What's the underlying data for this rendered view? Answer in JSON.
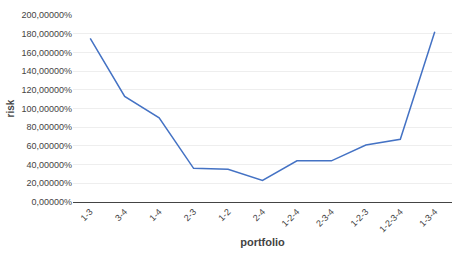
{
  "chart_data": {
    "type": "line",
    "xlabel": "portfolio",
    "ylabel": "risk",
    "categories": [
      "1-3",
      "3-4",
      "1-4",
      "2-3",
      "1-2",
      "2-4",
      "1-2-4",
      "2-3-4",
      "1-2-3",
      "1-2-3-4",
      "1-3-4"
    ],
    "values": [
      1.75,
      1.13,
      0.9,
      0.36,
      0.35,
      0.23,
      0.44,
      0.44,
      0.61,
      0.67,
      1.82
    ],
    "color": "#4472c4",
    "ylim": [
      0.0,
      2.0
    ],
    "yticks": [
      {
        "value": 0.0,
        "label": "0,00000%"
      },
      {
        "value": 0.2,
        "label": "20,00000%"
      },
      {
        "value": 0.4,
        "label": "40,00000%"
      },
      {
        "value": 0.6,
        "label": "60,00000%"
      },
      {
        "value": 0.8,
        "label": "80,00000%"
      },
      {
        "value": 1.0,
        "label": "100,00000%"
      },
      {
        "value": 1.2,
        "label": "120,00000%"
      },
      {
        "value": 1.4,
        "label": "140,00000%"
      },
      {
        "value": 1.6,
        "label": "160,00000%"
      },
      {
        "value": 1.8,
        "label": "180,00000%"
      },
      {
        "value": 2.0,
        "label": "200,00000%"
      }
    ],
    "grid": true
  }
}
